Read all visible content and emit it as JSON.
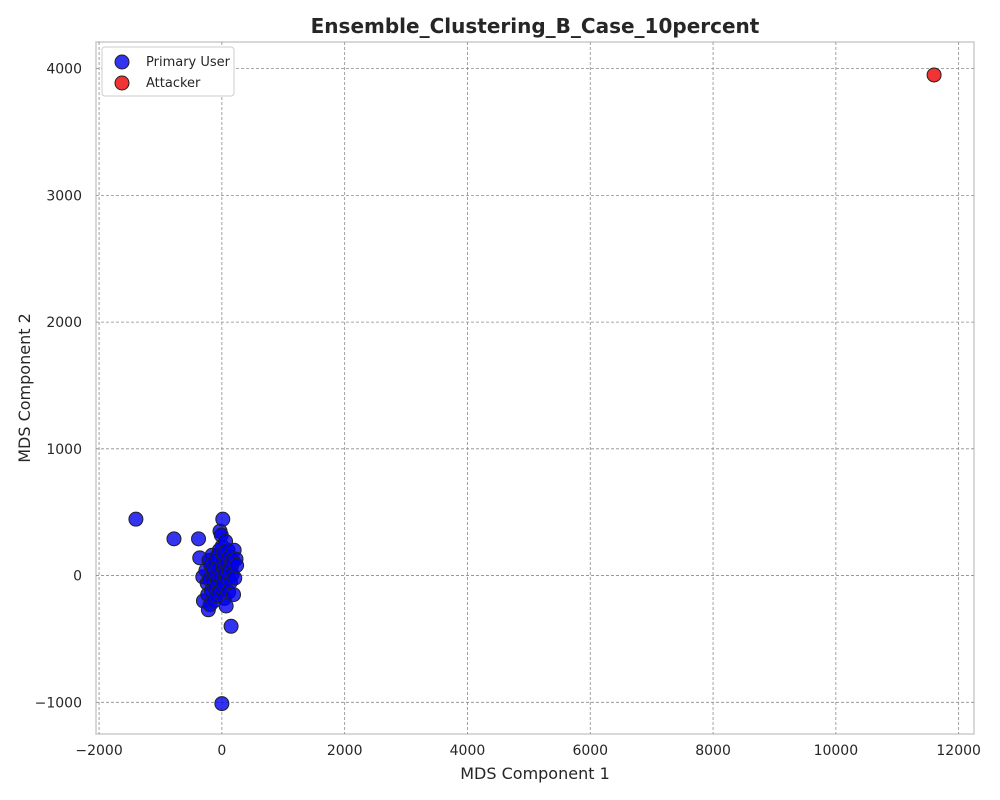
{
  "chart_data": {
    "type": "scatter",
    "title": "Ensemble_Clustering_B_Case_10percent",
    "xlabel": "MDS Component 1",
    "ylabel": "MDS Component 2",
    "xlim": [
      -2050,
      12250
    ],
    "ylim": [
      -1250,
      4210
    ],
    "xticks": [
      -2000,
      0,
      2000,
      4000,
      6000,
      8000,
      10000,
      12000
    ],
    "yticks": [
      -1000,
      0,
      1000,
      2000,
      3000,
      4000
    ],
    "grid": true,
    "legend_position": "top-left",
    "series": [
      {
        "name": "Primary User",
        "color": "#0000ee",
        "points": [
          [
            -1400,
            445
          ],
          [
            -780,
            290
          ],
          [
            -380,
            290
          ],
          [
            -360,
            140
          ],
          [
            -310,
            -10
          ],
          [
            -300,
            -200
          ],
          [
            -260,
            40
          ],
          [
            -240,
            -60
          ],
          [
            -230,
            -150
          ],
          [
            -220,
            -270
          ],
          [
            -210,
            120
          ],
          [
            -200,
            -30
          ],
          [
            -190,
            -230
          ],
          [
            -180,
            80
          ],
          [
            -170,
            -120
          ],
          [
            -160,
            160
          ],
          [
            -150,
            -50
          ],
          [
            -140,
            40
          ],
          [
            -130,
            -200
          ],
          [
            -120,
            110
          ],
          [
            -110,
            -90
          ],
          [
            -100,
            10
          ],
          [
            -90,
            -160
          ],
          [
            -80,
            150
          ],
          [
            -70,
            -40
          ],
          [
            -60,
            60
          ],
          [
            -50,
            -130
          ],
          [
            -40,
            200
          ],
          [
            -30,
            350
          ],
          [
            -20,
            -10
          ],
          [
            -10,
            320
          ],
          [
            0,
            -100
          ],
          [
            5,
            230
          ],
          [
            10,
            120
          ],
          [
            15,
            445
          ],
          [
            20,
            -60
          ],
          [
            25,
            60
          ],
          [
            30,
            170
          ],
          [
            40,
            -180
          ],
          [
            50,
            20
          ],
          [
            60,
            270
          ],
          [
            70,
            -240
          ],
          [
            80,
            100
          ],
          [
            90,
            -20
          ],
          [
            100,
            200
          ],
          [
            110,
            -130
          ],
          [
            120,
            40
          ],
          [
            130,
            150
          ],
          [
            140,
            -50
          ],
          [
            150,
            -400
          ],
          [
            160,
            80
          ],
          [
            170,
            10
          ],
          [
            180,
            120
          ],
          [
            190,
            -150
          ],
          [
            200,
            200
          ],
          [
            210,
            -20
          ],
          [
            230,
            130
          ],
          [
            240,
            80
          ],
          [
            0,
            -1010
          ]
        ]
      },
      {
        "name": "Attacker",
        "color": "#ee0000",
        "points": [
          [
            11600,
            3950
          ]
        ]
      }
    ]
  }
}
